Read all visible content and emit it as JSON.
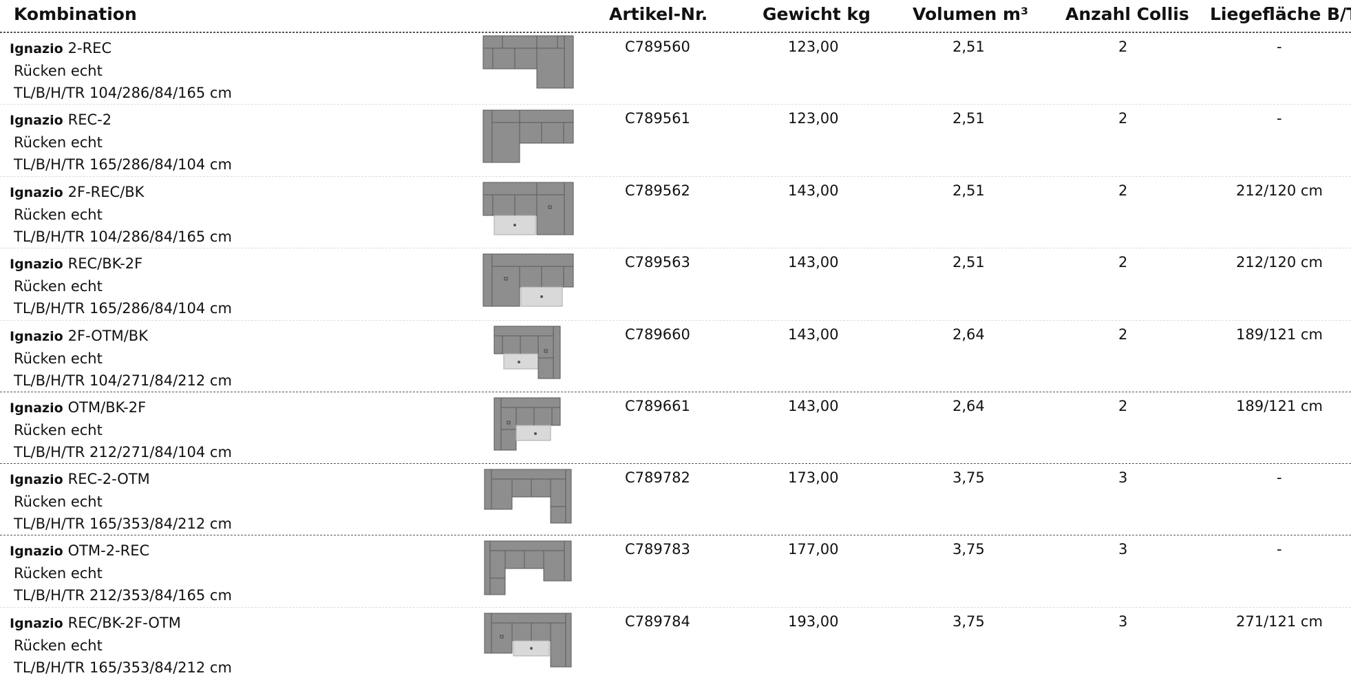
{
  "headers": {
    "kombination": "Kombination",
    "artikel": "Artikel-Nr.",
    "gewicht": "Gewicht kg",
    "volumen": "Volumen m³",
    "anzahl": "Anzahl Collis",
    "liegeflaeche": "Liegefläche B/T"
  },
  "rows": [
    {
      "brand": "Ignazio",
      "model": "2-REC",
      "ruecken": "Rücken echt",
      "masse": "TL/B/H/TR 104/286/84/165 cm",
      "artikel": "C789560",
      "gewicht": "123,00",
      "volumen": "2,51",
      "anzahl": "2",
      "liegeflaeche": "-",
      "thumb_icon": "sofa-2-rec-icon"
    },
    {
      "brand": "Ignazio",
      "model": "REC-2",
      "ruecken": "Rücken echt",
      "masse": "TL/B/H/TR 165/286/84/104 cm",
      "artikel": "C789561",
      "gewicht": "123,00",
      "volumen": "2,51",
      "anzahl": "2",
      "liegeflaeche": "-",
      "thumb_icon": "sofa-rec-2-icon"
    },
    {
      "brand": "Ignazio",
      "model": "2F-REC/BK",
      "ruecken": "Rücken echt",
      "masse": "TL/B/H/TR 104/286/84/165 cm",
      "artikel": "C789562",
      "gewicht": "143,00",
      "volumen": "2,51",
      "anzahl": "2",
      "liegeflaeche": "212/120 cm",
      "thumb_icon": "sofa-2f-rec-bk-icon"
    },
    {
      "brand": "Ignazio",
      "model": "REC/BK-2F",
      "ruecken": "Rücken echt",
      "masse": "TL/B/H/TR 165/286/84/104 cm",
      "artikel": "C789563",
      "gewicht": "143,00",
      "volumen": "2,51",
      "anzahl": "2",
      "liegeflaeche": "212/120 cm",
      "thumb_icon": "sofa-rec-bk-2f-icon"
    },
    {
      "brand": "Ignazio",
      "model": "2F-OTM/BK",
      "ruecken": "Rücken echt",
      "masse": "TL/B/H/TR 104/271/84/212 cm",
      "artikel": "C789660",
      "gewicht": "143,00",
      "volumen": "2,64",
      "anzahl": "2",
      "liegeflaeche": "189/121 cm",
      "thumb_icon": "sofa-2f-otm-bk-icon"
    },
    {
      "brand": "Ignazio",
      "model": "OTM/BK-2F",
      "ruecken": "Rücken echt",
      "masse": "TL/B/H/TR 212/271/84/104 cm",
      "artikel": "C789661",
      "gewicht": "143,00",
      "volumen": "2,64",
      "anzahl": "2",
      "liegeflaeche": "189/121 cm",
      "thumb_icon": "sofa-otm-bk-2f-icon"
    },
    {
      "brand": "Ignazio",
      "model": "REC-2-OTM",
      "ruecken": "Rücken echt",
      "masse": "TL/B/H/TR 165/353/84/212 cm",
      "artikel": "C789782",
      "gewicht": "173,00",
      "volumen": "3,75",
      "anzahl": "3",
      "liegeflaeche": "-",
      "thumb_icon": "sofa-rec-2-otm-icon"
    },
    {
      "brand": "Ignazio",
      "model": "OTM-2-REC",
      "ruecken": "Rücken echt",
      "masse": "TL/B/H/TR 212/353/84/165 cm",
      "artikel": "C789783",
      "gewicht": "177,00",
      "volumen": "3,75",
      "anzahl": "3",
      "liegeflaeche": "-",
      "thumb_icon": "sofa-otm-2-rec-icon"
    },
    {
      "brand": "Ignazio",
      "model": "REC/BK-2F-OTM",
      "ruecken": "Rücken echt",
      "masse": "TL/B/H/TR 165/353/84/212 cm",
      "artikel": "C789784",
      "gewicht": "193,00",
      "volumen": "3,75",
      "anzahl": "3",
      "liegeflaeche": "271/121 cm",
      "thumb_icon": "sofa-rec-bk-2f-otm-icon"
    }
  ]
}
